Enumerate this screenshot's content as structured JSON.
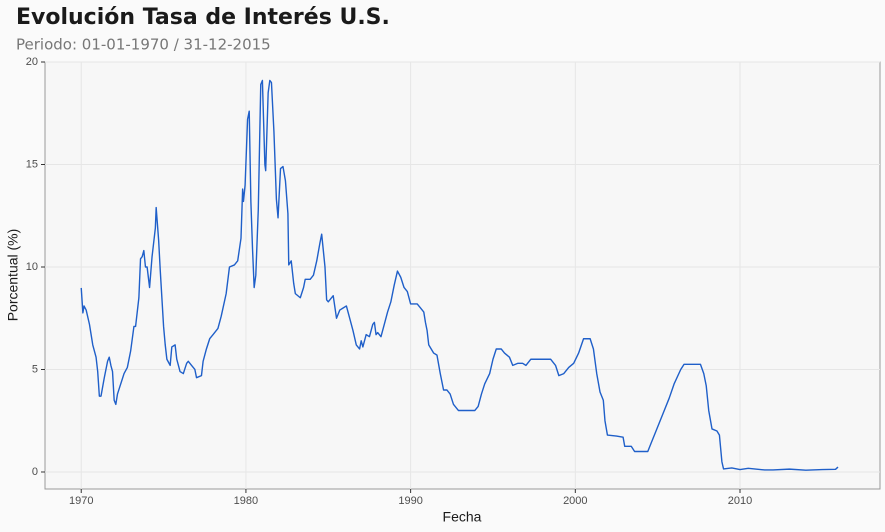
{
  "chart_data": {
    "type": "line",
    "title": "Evolución Tasa de Interés U.S.",
    "subtitle": "Periodo: 01-01-1970 / 31-12-2015",
    "x_label": "Fecha",
    "y_label": "Porcentual (%)",
    "color": "#1f5fc9",
    "grid": true,
    "xlim": [
      1967.8,
      2018.5
    ],
    "xticks": [
      1970,
      1980,
      1990,
      2000,
      2010
    ],
    "ylim": [
      -0.83,
      20
    ],
    "yticks": [
      0,
      5,
      10,
      15,
      20
    ],
    "x": [
      1970.0,
      1970.1,
      1970.17,
      1970.3,
      1970.5,
      1970.7,
      1970.9,
      1971.0,
      1971.1,
      1971.2,
      1971.4,
      1971.6,
      1971.7,
      1971.8,
      1971.9,
      1972.0,
      1972.1,
      1972.2,
      1972.4,
      1972.6,
      1972.8,
      1973.0,
      1973.2,
      1973.3,
      1973.5,
      1973.6,
      1973.7,
      1973.8,
      1973.9,
      1974.0,
      1974.15,
      1974.3,
      1974.5,
      1974.55,
      1974.7,
      1974.8,
      1975.0,
      1975.1,
      1975.2,
      1975.4,
      1975.5,
      1975.7,
      1975.8,
      1976.0,
      1976.2,
      1976.4,
      1976.5,
      1976.7,
      1976.9,
      1977.0,
      1977.3,
      1977.4,
      1977.6,
      1977.8,
      1978.0,
      1978.3,
      1978.5,
      1978.8,
      1979.0,
      1979.3,
      1979.5,
      1979.7,
      1979.8,
      1979.85,
      1979.95,
      1980.1,
      1980.2,
      1980.3,
      1980.4,
      1980.5,
      1980.6,
      1980.75,
      1980.9,
      1981.0,
      1981.15,
      1981.2,
      1981.35,
      1981.45,
      1981.55,
      1981.7,
      1981.85,
      1981.95,
      1982.1,
      1982.25,
      1982.4,
      1982.55,
      1982.6,
      1982.75,
      1982.9,
      1983.0,
      1983.3,
      1983.5,
      1983.6,
      1983.9,
      1984.1,
      1984.3,
      1984.5,
      1984.6,
      1984.8,
      1984.9,
      1985.0,
      1985.3,
      1985.5,
      1985.7,
      1985.9,
      1986.1,
      1986.3,
      1986.5,
      1986.7,
      1986.9,
      1987.0,
      1987.1,
      1987.3,
      1987.5,
      1987.7,
      1987.8,
      1987.9,
      1988.0,
      1988.2,
      1988.4,
      1988.6,
      1988.8,
      1989.0,
      1989.2,
      1989.4,
      1989.6,
      1989.8,
      1990.0,
      1990.4,
      1990.6,
      1990.8,
      1990.9,
      1991.0,
      1991.1,
      1991.4,
      1991.6,
      1991.8,
      1992.0,
      1992.2,
      1992.4,
      1992.6,
      1992.9,
      1993.3,
      1993.6,
      1993.9,
      1994.1,
      1994.3,
      1994.5,
      1994.8,
      1995.0,
      1995.2,
      1995.5,
      1995.7,
      1996.0,
      1996.2,
      1996.5,
      1996.8,
      1997.0,
      1997.3,
      1997.6,
      1998.0,
      1998.5,
      1998.8,
      1999.0,
      1999.3,
      1999.6,
      1999.9,
      2000.2,
      2000.5,
      2000.9,
      2001.1,
      2001.3,
      2001.5,
      2001.7,
      2001.8,
      2001.95,
      2002.5,
      2002.9,
      2003.0,
      2003.4,
      2003.6,
      2004.4,
      2004.6,
      2004.9,
      2005.3,
      2005.7,
      2006.0,
      2006.4,
      2006.6,
      2007.6,
      2007.8,
      2007.95,
      2008.1,
      2008.3,
      2008.6,
      2008.75,
      2008.9,
      2009.0,
      2009.5,
      2010.0,
      2010.5,
      2011.5,
      2012.0,
      2013.0,
      2014.0,
      2015.0,
      2015.8,
      2015.95
    ],
    "values": [
      8.98,
      7.76,
      8.1,
      7.9,
      7.2,
      6.2,
      5.6,
      4.9,
      3.7,
      3.7,
      4.6,
      5.4,
      5.6,
      5.2,
      4.9,
      3.5,
      3.3,
      3.8,
      4.3,
      4.8,
      5.1,
      5.9,
      7.1,
      7.1,
      8.5,
      10.4,
      10.5,
      10.8,
      10.0,
      10.0,
      9.0,
      10.5,
      11.9,
      12.9,
      11.3,
      9.8,
      7.1,
      6.2,
      5.5,
      5.2,
      6.1,
      6.2,
      5.5,
      4.9,
      4.8,
      5.3,
      5.4,
      5.2,
      5.0,
      4.6,
      4.7,
      5.4,
      6.0,
      6.5,
      6.7,
      7.0,
      7.6,
      8.7,
      10.0,
      10.1,
      10.3,
      11.4,
      13.8,
      13.2,
      14.0,
      17.2,
      17.6,
      13.2,
      10.9,
      9.0,
      9.6,
      12.8,
      18.9,
      19.1,
      15.0,
      14.7,
      18.5,
      19.1,
      19.0,
      16.6,
      13.3,
      12.4,
      14.8,
      14.9,
      14.2,
      12.6,
      10.1,
      10.3,
      9.2,
      8.7,
      8.5,
      9.0,
      9.4,
      9.4,
      9.6,
      10.3,
      11.2,
      11.6,
      10.0,
      8.4,
      8.3,
      8.6,
      7.5,
      7.9,
      8.0,
      8.1,
      7.5,
      6.9,
      6.2,
      6.0,
      6.4,
      6.1,
      6.7,
      6.6,
      7.2,
      7.3,
      6.7,
      6.8,
      6.6,
      7.2,
      7.8,
      8.3,
      9.1,
      9.8,
      9.5,
      9.0,
      8.8,
      8.2,
      8.2,
      8.0,
      7.8,
      7.3,
      6.9,
      6.2,
      5.8,
      5.7,
      4.8,
      4.0,
      4.0,
      3.8,
      3.3,
      3.0,
      3.0,
      3.0,
      3.0,
      3.2,
      3.8,
      4.3,
      4.8,
      5.5,
      6.0,
      6.0,
      5.8,
      5.6,
      5.2,
      5.3,
      5.3,
      5.2,
      5.5,
      5.5,
      5.5,
      5.5,
      5.2,
      4.7,
      4.8,
      5.1,
      5.3,
      5.8,
      6.5,
      6.5,
      6.0,
      4.8,
      3.9,
      3.5,
      2.5,
      1.8,
      1.75,
      1.7,
      1.25,
      1.25,
      1.0,
      1.0,
      1.4,
      2.0,
      2.8,
      3.6,
      4.3,
      5.0,
      5.25,
      5.25,
      4.8,
      4.2,
      3.0,
      2.1,
      2.0,
      1.8,
      0.5,
      0.15,
      0.2,
      0.12,
      0.18,
      0.1,
      0.1,
      0.14,
      0.09,
      0.12,
      0.13,
      0.24
    ]
  }
}
